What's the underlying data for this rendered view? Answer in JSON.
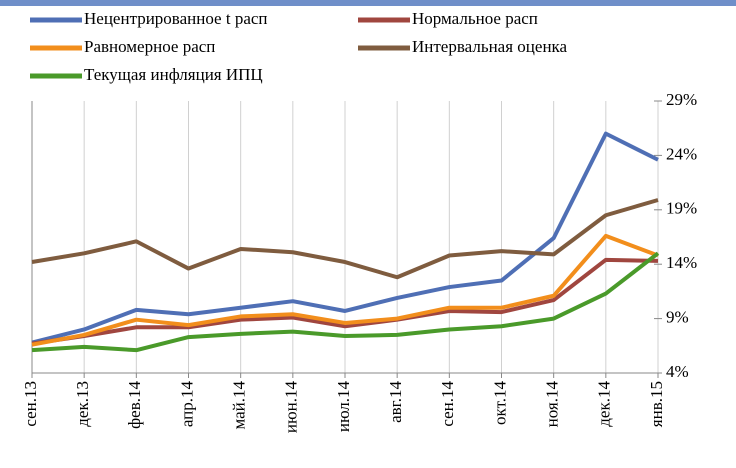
{
  "chart_data": {
    "type": "line",
    "categories": [
      "сен.13",
      "дек.13",
      "фев.14",
      "апр.14",
      "май.14",
      "июн.14",
      "июл.14",
      "авг.14",
      "сен.14",
      "окт.14",
      "ноя.14",
      "дек.14",
      "янв.15"
    ],
    "series": [
      {
        "name": "Нецентрированное t расп",
        "color": "#4f6fb5",
        "values": [
          6.8,
          8.0,
          9.8,
          9.4,
          10.0,
          10.6,
          9.7,
          10.9,
          11.9,
          12.5,
          16.4,
          26.0,
          23.6
        ]
      },
      {
        "name": "Нормальное расп",
        "color": "#a0463f",
        "values": [
          6.7,
          7.4,
          8.2,
          8.2,
          8.9,
          9.1,
          8.3,
          8.9,
          9.7,
          9.6,
          10.7,
          14.4,
          14.3
        ]
      },
      {
        "name": "Равномерное расп",
        "color": "#f28e1c",
        "values": [
          6.6,
          7.5,
          8.9,
          8.4,
          9.2,
          9.4,
          8.6,
          9.0,
          10.0,
          10.0,
          11.1,
          16.6,
          14.8
        ]
      },
      {
        "name": "Интервальная оценка",
        "color": "#7f5c3f",
        "values": [
          14.2,
          15.0,
          16.1,
          13.6,
          15.4,
          15.1,
          14.2,
          12.8,
          14.8,
          15.2,
          14.9,
          18.5,
          19.9
        ]
      },
      {
        "name": "Текущая инфляция ИПЦ",
        "color": "#4a9a2a",
        "values": [
          6.1,
          6.4,
          6.1,
          7.3,
          7.6,
          7.8,
          7.4,
          7.5,
          8.0,
          8.3,
          9.0,
          11.3,
          15.0
        ]
      }
    ],
    "ylim": [
      4,
      29
    ],
    "yticks": [
      {
        "value": 4,
        "label": "4%"
      },
      {
        "value": 9,
        "label": "9%"
      },
      {
        "value": 14,
        "label": "14%"
      },
      {
        "value": 19,
        "label": "19%"
      },
      {
        "value": 24,
        "label": "24%"
      },
      {
        "value": 29,
        "label": "29%"
      }
    ]
  }
}
